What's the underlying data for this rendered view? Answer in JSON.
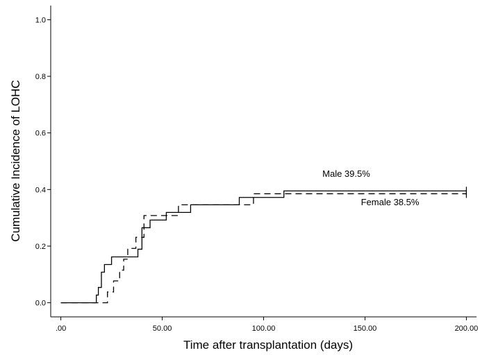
{
  "chart_data": {
    "type": "line",
    "xlabel": "Time after transplantation (days)",
    "ylabel": "Cumulative Incidence of LOHC",
    "xlim": [
      -5,
      205
    ],
    "ylim": [
      -0.05,
      1.05
    ],
    "x_ticks": [
      0,
      50,
      100,
      150,
      200
    ],
    "x_tick_labels": [
      ".00",
      "50.00",
      "100.00",
      "150.00",
      "200.00"
    ],
    "y_ticks": [
      0.0,
      0.2,
      0.4,
      0.6,
      0.8,
      1.0
    ],
    "y_tick_labels": [
      "0.0",
      "0.2",
      "0.4",
      "0.6",
      "0.8",
      "1.0"
    ],
    "grid": false,
    "step": true,
    "series": [
      {
        "name": "Male 39.5%",
        "style": "solid",
        "color": "#000000",
        "x": [
          0,
          17.5,
          18.5,
          20,
          21.5,
          23,
          25,
          33,
          38,
          40,
          44,
          52,
          57,
          64,
          88,
          110,
          200
        ],
        "y": [
          0.0,
          0.027,
          0.054,
          0.108,
          0.135,
          0.135,
          0.162,
          0.162,
          0.189,
          0.265,
          0.292,
          0.319,
          0.319,
          0.346,
          0.372,
          0.395,
          0.395
        ],
        "censor_x": [
          200
        ]
      },
      {
        "name": "Female 38.5%",
        "style": "dashed",
        "color": "#000000",
        "x": [
          0,
          19,
          23,
          26,
          29,
          31,
          33,
          35,
          37,
          41,
          50,
          55,
          58,
          64,
          95,
          200
        ],
        "y": [
          0.0,
          0.0,
          0.038,
          0.077,
          0.115,
          0.154,
          0.192,
          0.192,
          0.231,
          0.308,
          0.308,
          0.308,
          0.346,
          0.346,
          0.385,
          0.385
        ],
        "censor_x": [
          200
        ]
      }
    ],
    "annotations": [
      {
        "text": "Male 39.5%",
        "x": 129,
        "y": 0.445
      },
      {
        "text": "Female 38.5%",
        "x": 148,
        "y": 0.345
      }
    ]
  }
}
